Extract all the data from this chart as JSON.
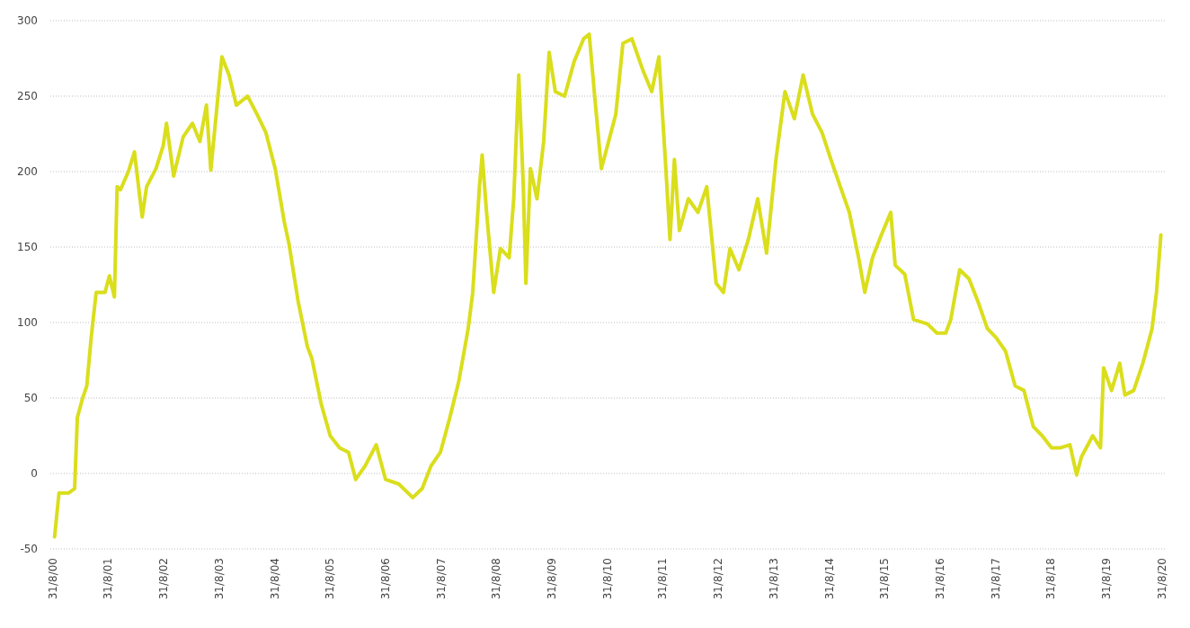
{
  "chart_data": {
    "type": "line",
    "x": [
      "2000-09-13",
      "2000-10-12",
      "2000-12-13",
      "2001-01-23",
      "2001-02-10",
      "2001-03-14",
      "2001-04-13",
      "2001-05-12",
      "2001-06-14",
      "2001-08-11",
      "2001-09-09",
      "2001-10-12",
      "2001-10-30",
      "2001-11-21",
      "2002-01-12",
      "2002-02-21",
      "2002-04-13",
      "2002-05-12",
      "2002-07-13",
      "2002-08-29",
      "2002-09-20",
      "2002-11-06",
      "2003-01-08",
      "2003-03-10",
      "2003-04-28",
      "2003-06-10",
      "2003-07-09",
      "2003-08-25",
      "2003-09-20",
      "2003-11-06",
      "2003-12-24",
      "2004-03-07",
      "2004-05-08",
      "2004-07-05",
      "2004-09-05",
      "2004-11-03",
      "2004-12-05",
      "2005-02-03",
      "2005-04-05",
      "2005-05-05",
      "2005-07-05",
      "2005-09-02",
      "2005-11-03",
      "2006-01-01",
      "2006-02-17",
      "2006-04-20",
      "2006-07-02",
      "2006-09-02",
      "2006-11-28",
      "2007-02-28",
      "2007-05-01",
      "2007-06-28",
      "2007-08-29",
      "2007-10-30",
      "2007-12-28",
      "2008-02-28",
      "2008-03-29",
      "2008-05-12",
      "2008-05-30",
      "2008-06-28",
      "2008-08-14",
      "2008-09-27",
      "2008-11-24",
      "2008-12-24",
      "2009-01-26",
      "2009-02-25",
      "2009-03-14",
      "2009-04-13",
      "2009-05-26",
      "2009-07-09",
      "2009-08-14",
      "2009-09-24",
      "2009-11-24",
      "2010-01-26",
      "2010-03-29",
      "2010-05-05",
      "2010-06-10",
      "2010-07-24",
      "2010-08-25",
      "2010-10-27",
      "2010-12-13",
      "2011-02-10",
      "2011-04-24",
      "2011-06-21",
      "2011-08-07",
      "2011-09-20",
      "2011-10-19",
      "2011-11-17",
      "2011-12-20",
      "2012-02-17",
      "2012-04-20",
      "2012-06-17",
      "2012-08-18",
      "2012-10-05",
      "2012-11-17",
      "2013-01-15",
      "2013-03-18",
      "2013-05-19",
      "2013-07-16",
      "2013-09-16",
      "2013-11-14",
      "2014-01-15",
      "2014-03-14",
      "2014-05-15",
      "2014-07-16",
      "2014-09-13",
      "2014-11-14",
      "2015-01-12",
      "2015-03-14",
      "2015-04-24",
      "2015-06-14",
      "2015-08-11",
      "2015-10-12",
      "2015-11-10",
      "2016-01-12",
      "2016-03-10",
      "2016-06-10",
      "2016-08-11",
      "2016-10-08",
      "2016-11-10",
      "2017-01-08",
      "2017-03-10",
      "2017-05-08",
      "2017-07-09",
      "2017-09-05",
      "2017-11-06",
      "2018-01-08",
      "2018-03-07",
      "2018-05-08",
      "2018-07-05",
      "2018-09-05",
      "2018-11-03",
      "2019-01-04",
      "2019-02-17",
      "2019-03-21",
      "2019-06-03",
      "2019-07-24",
      "2019-08-14",
      "2019-10-05",
      "2019-11-28",
      "2020-01-01",
      "2020-02-28",
      "2020-04-28",
      "2020-06-28",
      "2020-07-27",
      "2020-08-25"
    ],
    "series": [
      {
        "color": "#dade1c",
        "values": [
          -42,
          -13,
          -13,
          -10,
          37,
          49,
          58,
          90,
          120,
          120,
          131,
          117,
          190,
          188,
          200,
          213,
          170,
          190,
          202,
          217,
          232,
          197,
          223,
          232,
          220,
          244,
          201,
          250,
          276,
          264,
          244,
          250,
          238,
          226,
          202,
          167,
          152,
          114,
          84,
          76,
          46,
          25,
          17,
          14,
          -4,
          5,
          19,
          -4,
          -7,
          -16,
          -10,
          5,
          14,
          37,
          61,
          96,
          120,
          190,
          211,
          173,
          120,
          149,
          143,
          182,
          264,
          190,
          126,
          202,
          182,
          220,
          279,
          253,
          250,
          273,
          288,
          291,
          250,
          202,
          214,
          238,
          285,
          288,
          267,
          253,
          276,
          205,
          155,
          208,
          161,
          182,
          173,
          190,
          126,
          120,
          149,
          135,
          155,
          182,
          146,
          208,
          253,
          235,
          264,
          238,
          226,
          208,
          190,
          173,
          143,
          120,
          143,
          158,
          173,
          138,
          132,
          102,
          99,
          93,
          93,
          102,
          135,
          129,
          114,
          96,
          90,
          81,
          58,
          55,
          31,
          25,
          17,
          17,
          19,
          -1,
          11,
          25,
          17,
          70,
          55,
          73,
          52,
          55,
          73,
          96,
          120,
          158
        ]
      }
    ],
    "xlim": [
      "2000-08-16",
      "2020-09-20"
    ],
    "xticks": [
      {
        "value": "2000-08-31",
        "label": "31/8/00"
      },
      {
        "value": "2001-08-31",
        "label": "31/8/01"
      },
      {
        "value": "2002-08-31",
        "label": "31/8/02"
      },
      {
        "value": "2003-08-31",
        "label": "31/8/03"
      },
      {
        "value": "2004-08-31",
        "label": "31/8/04"
      },
      {
        "value": "2005-08-31",
        "label": "31/8/05"
      },
      {
        "value": "2006-08-31",
        "label": "31/8/06"
      },
      {
        "value": "2007-08-31",
        "label": "31/8/07"
      },
      {
        "value": "2008-08-31",
        "label": "31/8/08"
      },
      {
        "value": "2009-08-31",
        "label": "31/8/09"
      },
      {
        "value": "2010-08-31",
        "label": "31/8/10"
      },
      {
        "value": "2011-08-31",
        "label": "31/8/11"
      },
      {
        "value": "2012-08-31",
        "label": "31/8/12"
      },
      {
        "value": "2013-08-31",
        "label": "31/8/13"
      },
      {
        "value": "2014-08-31",
        "label": "31/8/14"
      },
      {
        "value": "2015-08-31",
        "label": "31/8/15"
      },
      {
        "value": "2016-08-31",
        "label": "31/8/16"
      },
      {
        "value": "2017-08-31",
        "label": "31/8/17"
      },
      {
        "value": "2018-08-31",
        "label": "31/8/18"
      },
      {
        "value": "2019-08-31",
        "label": "31/8/19"
      },
      {
        "value": "2020-08-31",
        "label": "31/8/20"
      }
    ],
    "ylim": [
      -50,
      300
    ],
    "yticks": [
      -50,
      0,
      50,
      100,
      150,
      200,
      250,
      300
    ],
    "grid": "y",
    "line_style": "solid"
  }
}
